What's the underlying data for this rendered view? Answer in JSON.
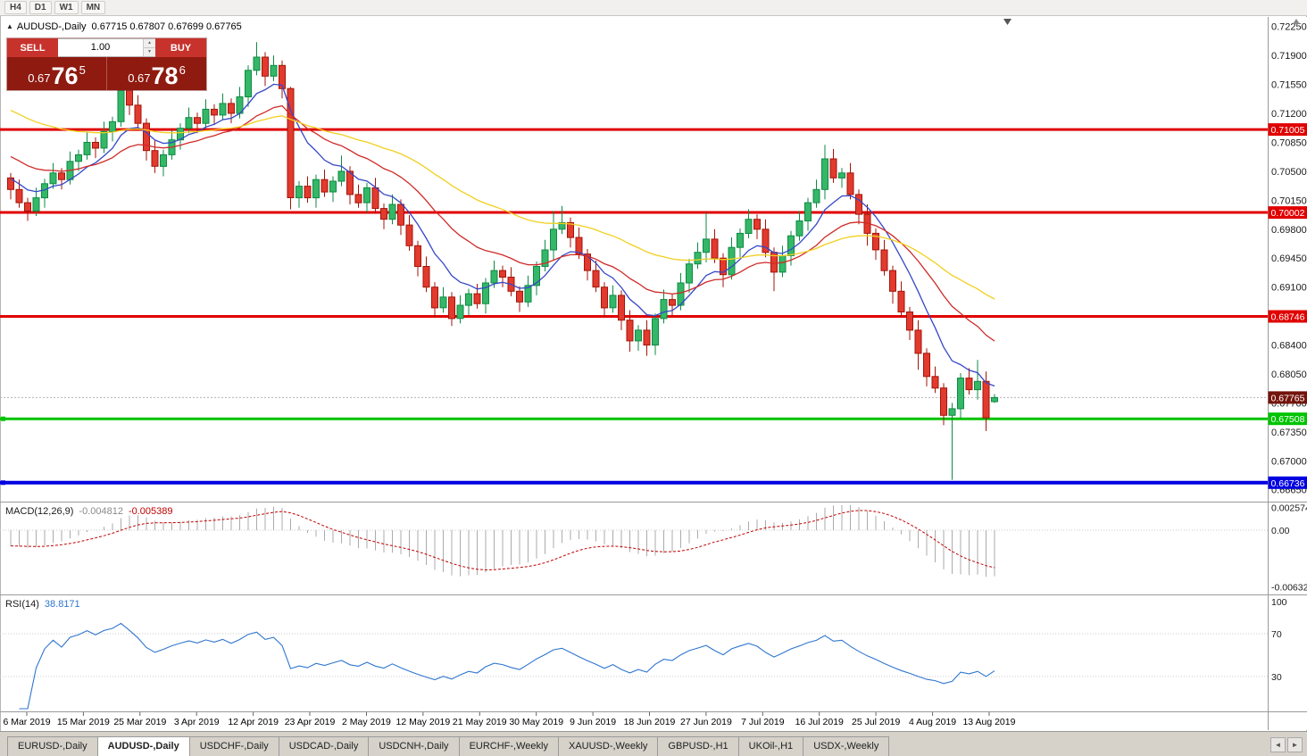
{
  "toolbar": {
    "timeframes": [
      "H4",
      "D1",
      "W1",
      "MN"
    ]
  },
  "icons": {
    "panel_toggle": "▲",
    "spin_up": "▲",
    "spin_down": "▼",
    "shift_marker": "▼",
    "scroll_up": "▲",
    "tab_left": "◄",
    "tab_right": "►"
  },
  "chart": {
    "symbol_period": "AUDUSD-,Daily",
    "ohlc_text": "0.67715 0.67807 0.67699 0.67765",
    "current_price": {
      "value": 0.67765,
      "label": "0.67765",
      "tag_color": "#73140c"
    },
    "levels": [
      {
        "label": "0.71005",
        "value": 0.71005,
        "color": "#e00000",
        "thickness": 3,
        "handle": false
      },
      {
        "label": "0.70002",
        "value": 0.70002,
        "color": "#e00000",
        "thickness": 3,
        "handle": false
      },
      {
        "label": "0.68746",
        "value": 0.68746,
        "color": "#e00000",
        "thickness": 3,
        "handle": false
      },
      {
        "label": "0.67508",
        "value": 0.67508,
        "color": "#00c400",
        "thickness": 3,
        "handle": true
      },
      {
        "label": "0.66736",
        "value": 0.66736,
        "color": "#0000e0",
        "thickness": 4,
        "handle": true
      }
    ],
    "price_axis": [
      "0.72250",
      "0.71900",
      "0.71550",
      "0.71200",
      "0.70850",
      "0.70500",
      "0.70150",
      "0.69800",
      "0.69450",
      "0.69100",
      "0.68750",
      "0.68400",
      "0.68050",
      "0.67700",
      "0.67350",
      "0.67000",
      "0.66650"
    ],
    "colors": {
      "bull_fill": "#35b768",
      "bull_stroke": "#0d8a43",
      "bear_fill": "#e23a2e",
      "bear_stroke": "#a31408",
      "ma_fast": "#3547c8",
      "ma_mid": "#cf2a27",
      "ma_slow": "#f2cf1d",
      "macd_hist": "#ababab",
      "macd_signal": "#c00000",
      "rsi_line": "#2f76cf"
    },
    "ma_lines": [
      {
        "color": "#3547c8",
        "period": 8,
        "seed": 0.7045
      },
      {
        "color": "#cf2a27",
        "period": 20,
        "seed": 0.7072
      },
      {
        "color": "#f2cf1d",
        "period": 45,
        "seed": 0.7128
      }
    ]
  },
  "chart_data": {
    "type": "candlestick",
    "title": "AUDUSD-,Daily",
    "symbol": "AUDUSD",
    "timeframe": "Daily",
    "ylim": [
      0.6655,
      0.7229
    ],
    "x_labels": [
      "6 Mar 2019",
      "15 Mar 2019",
      "25 Mar 2019",
      "3 Apr 2019",
      "12 Apr 2019",
      "23 Apr 2019",
      "2 May 2019",
      "12 May 2019",
      "21 May 2019",
      "30 May 2019",
      "9 Jun 2019",
      "18 Jun 2019",
      "27 Jun 2019",
      "7 Jul 2019",
      "16 Jul 2019",
      "25 Jul 2019",
      "4 Aug 2019",
      "13 Aug 2019"
    ],
    "candles": [
      [
        0.7042,
        0.7048,
        0.7016,
        0.7028
      ],
      [
        0.7028,
        0.704,
        0.7006,
        0.7012
      ],
      [
        0.7012,
        0.7018,
        0.699,
        0.7002
      ],
      [
        0.7002,
        0.703,
        0.6996,
        0.7018
      ],
      [
        0.7018,
        0.7041,
        0.7006,
        0.7035
      ],
      [
        0.7035,
        0.706,
        0.7029,
        0.7048
      ],
      [
        0.7048,
        0.7054,
        0.7028,
        0.704
      ],
      [
        0.704,
        0.7074,
        0.7034,
        0.7062
      ],
      [
        0.7062,
        0.7076,
        0.705,
        0.707
      ],
      [
        0.707,
        0.7097,
        0.7064,
        0.7085
      ],
      [
        0.7085,
        0.7091,
        0.7066,
        0.7078
      ],
      [
        0.7078,
        0.711,
        0.7072,
        0.7098
      ],
      [
        0.7098,
        0.7116,
        0.7086,
        0.711
      ],
      [
        0.711,
        0.7165,
        0.7104,
        0.7148
      ],
      [
        0.7148,
        0.7154,
        0.7118,
        0.713
      ],
      [
        0.713,
        0.7142,
        0.7102,
        0.7108
      ],
      [
        0.7108,
        0.7114,
        0.7063,
        0.7075
      ],
      [
        0.7075,
        0.7087,
        0.7048,
        0.7056
      ],
      [
        0.7056,
        0.7076,
        0.7044,
        0.707
      ],
      [
        0.707,
        0.71,
        0.7064,
        0.7088
      ],
      [
        0.7088,
        0.7108,
        0.7076,
        0.7102
      ],
      [
        0.7102,
        0.7127,
        0.7096,
        0.7115
      ],
      [
        0.7115,
        0.7121,
        0.7096,
        0.7108
      ],
      [
        0.7108,
        0.7137,
        0.7102,
        0.7125
      ],
      [
        0.7125,
        0.7131,
        0.7106,
        0.7118
      ],
      [
        0.7118,
        0.7144,
        0.7112,
        0.7132
      ],
      [
        0.7132,
        0.7138,
        0.7108,
        0.712
      ],
      [
        0.712,
        0.7152,
        0.7114,
        0.714
      ],
      [
        0.714,
        0.7178,
        0.7128,
        0.7172
      ],
      [
        0.7172,
        0.7206,
        0.7166,
        0.7188
      ],
      [
        0.7188,
        0.7194,
        0.7153,
        0.7165
      ],
      [
        0.7165,
        0.719,
        0.7159,
        0.7178
      ],
      [
        0.7178,
        0.7184,
        0.7138,
        0.715
      ],
      [
        0.715,
        0.7152,
        0.7004,
        0.7018
      ],
      [
        0.7018,
        0.7038,
        0.7006,
        0.7032
      ],
      [
        0.7032,
        0.7044,
        0.7012,
        0.7018
      ],
      [
        0.7018,
        0.7046,
        0.7006,
        0.704
      ],
      [
        0.704,
        0.7052,
        0.7019,
        0.7025
      ],
      [
        0.7025,
        0.7044,
        0.7013,
        0.7038
      ],
      [
        0.7038,
        0.7069,
        0.7032,
        0.705
      ],
      [
        0.705,
        0.7056,
        0.701,
        0.7022
      ],
      [
        0.7022,
        0.7034,
        0.7006,
        0.7012
      ],
      [
        0.7012,
        0.7036,
        0.7,
        0.703
      ],
      [
        0.703,
        0.7042,
        0.6999,
        0.7005
      ],
      [
        0.7005,
        0.7011,
        0.698,
        0.6992
      ],
      [
        0.6992,
        0.7022,
        0.6986,
        0.701
      ],
      [
        0.701,
        0.7016,
        0.6973,
        0.6985
      ],
      [
        0.6985,
        0.6997,
        0.6954,
        0.696
      ],
      [
        0.696,
        0.6966,
        0.6923,
        0.6935
      ],
      [
        0.6935,
        0.6947,
        0.6904,
        0.691
      ],
      [
        0.691,
        0.6916,
        0.6873,
        0.6885
      ],
      [
        0.6885,
        0.691,
        0.6879,
        0.6898
      ],
      [
        0.6898,
        0.6904,
        0.6863,
        0.6872
      ],
      [
        0.6872,
        0.69,
        0.6866,
        0.6888
      ],
      [
        0.6888,
        0.6908,
        0.6876,
        0.6902
      ],
      [
        0.6902,
        0.6914,
        0.6884,
        0.689
      ],
      [
        0.689,
        0.6921,
        0.6878,
        0.6915
      ],
      [
        0.6915,
        0.6942,
        0.6909,
        0.693
      ],
      [
        0.693,
        0.6936,
        0.691,
        0.6922
      ],
      [
        0.6922,
        0.6934,
        0.6899,
        0.6905
      ],
      [
        0.6905,
        0.6911,
        0.688,
        0.6892
      ],
      [
        0.6892,
        0.6924,
        0.6886,
        0.6912
      ],
      [
        0.6912,
        0.6941,
        0.69,
        0.6935
      ],
      [
        0.6935,
        0.6967,
        0.6929,
        0.6955
      ],
      [
        0.6955,
        0.7002,
        0.6943,
        0.698
      ],
      [
        0.698,
        0.7008,
        0.6974,
        0.6988
      ],
      [
        0.6988,
        0.6994,
        0.6958,
        0.697
      ],
      [
        0.697,
        0.6982,
        0.6944,
        0.695
      ],
      [
        0.695,
        0.6956,
        0.6918,
        0.693
      ],
      [
        0.693,
        0.6942,
        0.6904,
        0.691
      ],
      [
        0.691,
        0.6916,
        0.6873,
        0.6885
      ],
      [
        0.6885,
        0.6912,
        0.6879,
        0.69
      ],
      [
        0.69,
        0.6906,
        0.6858,
        0.687
      ],
      [
        0.687,
        0.6882,
        0.6832,
        0.6845
      ],
      [
        0.6845,
        0.6864,
        0.6833,
        0.6858
      ],
      [
        0.6858,
        0.687,
        0.6827,
        0.684
      ],
      [
        0.684,
        0.6878,
        0.6828,
        0.6872
      ],
      [
        0.6872,
        0.6907,
        0.6866,
        0.6895
      ],
      [
        0.6895,
        0.6901,
        0.6876,
        0.6888
      ],
      [
        0.6888,
        0.6927,
        0.6882,
        0.6915
      ],
      [
        0.6915,
        0.6944,
        0.6903,
        0.6938
      ],
      [
        0.6938,
        0.6964,
        0.6932,
        0.6952
      ],
      [
        0.6952,
        0.7,
        0.694,
        0.6968
      ],
      [
        0.6968,
        0.698,
        0.6939,
        0.6945
      ],
      [
        0.6945,
        0.6951,
        0.691,
        0.6925
      ],
      [
        0.6925,
        0.697,
        0.6919,
        0.6958
      ],
      [
        0.6958,
        0.6981,
        0.6946,
        0.6975
      ],
      [
        0.6975,
        0.7004,
        0.6969,
        0.6992
      ],
      [
        0.6992,
        0.6998,
        0.6968,
        0.698
      ],
      [
        0.698,
        0.6992,
        0.6946,
        0.6952
      ],
      [
        0.6952,
        0.6958,
        0.6905,
        0.6928
      ],
      [
        0.6928,
        0.696,
        0.6922,
        0.6948
      ],
      [
        0.6948,
        0.6978,
        0.6936,
        0.6972
      ],
      [
        0.6972,
        0.7002,
        0.6966,
        0.699
      ],
      [
        0.699,
        0.7018,
        0.6978,
        0.7012
      ],
      [
        0.7012,
        0.704,
        0.7006,
        0.7028
      ],
      [
        0.7028,
        0.7082,
        0.7016,
        0.7065
      ],
      [
        0.7065,
        0.7077,
        0.7036,
        0.7042
      ],
      [
        0.7042,
        0.7054,
        0.703,
        0.7048
      ],
      [
        0.7048,
        0.706,
        0.7016,
        0.7022
      ],
      [
        0.7022,
        0.7028,
        0.6986,
        0.6998
      ],
      [
        0.6998,
        0.701,
        0.696,
        0.6975
      ],
      [
        0.6975,
        0.6981,
        0.6943,
        0.6955
      ],
      [
        0.6955,
        0.6967,
        0.6924,
        0.693
      ],
      [
        0.693,
        0.6936,
        0.689,
        0.6905
      ],
      [
        0.6905,
        0.6917,
        0.6874,
        0.688
      ],
      [
        0.688,
        0.6886,
        0.6846,
        0.6858
      ],
      [
        0.6858,
        0.687,
        0.681,
        0.683
      ],
      [
        0.683,
        0.6836,
        0.679,
        0.6802
      ],
      [
        0.6802,
        0.6814,
        0.6782,
        0.6788
      ],
      [
        0.6788,
        0.6794,
        0.6743,
        0.6755
      ],
      [
        0.6755,
        0.677,
        0.6677,
        0.6763
      ],
      [
        0.6763,
        0.6806,
        0.6751,
        0.68
      ],
      [
        0.68,
        0.6812,
        0.678,
        0.6786
      ],
      [
        0.6786,
        0.6822,
        0.6774,
        0.6796
      ],
      [
        0.6796,
        0.6808,
        0.6736,
        0.6752
      ],
      [
        0.67715,
        0.67807,
        0.67699,
        0.67765
      ]
    ]
  },
  "trade_panel": {
    "sell_label": "SELL",
    "buy_label": "BUY",
    "volume": "1.00",
    "sell": {
      "prefix": "0.67",
      "pips": "76",
      "pipette": "5"
    },
    "buy": {
      "prefix": "0.67",
      "pips": "78",
      "pipette": "6"
    }
  },
  "macd": {
    "label": "MACD(12,26,9)",
    "value_main": "-0.004812",
    "value_signal": "-0.005389",
    "params": [
      12,
      26,
      9
    ],
    "axis": [
      "0.002574",
      "0.00",
      "-0.006326"
    ],
    "range": [
      -0.0068,
      0.0028
    ]
  },
  "rsi": {
    "label": "RSI(14)",
    "value": "38.8171",
    "period": 14,
    "axis": [
      "100",
      "70",
      "30"
    ],
    "levels": [
      70,
      30
    ]
  },
  "tabs": {
    "active_index": 1,
    "items": [
      "EURUSD-,Daily",
      "AUDUSD-,Daily",
      "USDCHF-,Daily",
      "USDCAD-,Daily",
      "USDCNH-,Daily",
      "EURCHF-,Weekly",
      "XAUUSD-,Weekly",
      "GBPUSD-,H1",
      "UKOil-,H1",
      "USDX-,Weekly"
    ]
  }
}
